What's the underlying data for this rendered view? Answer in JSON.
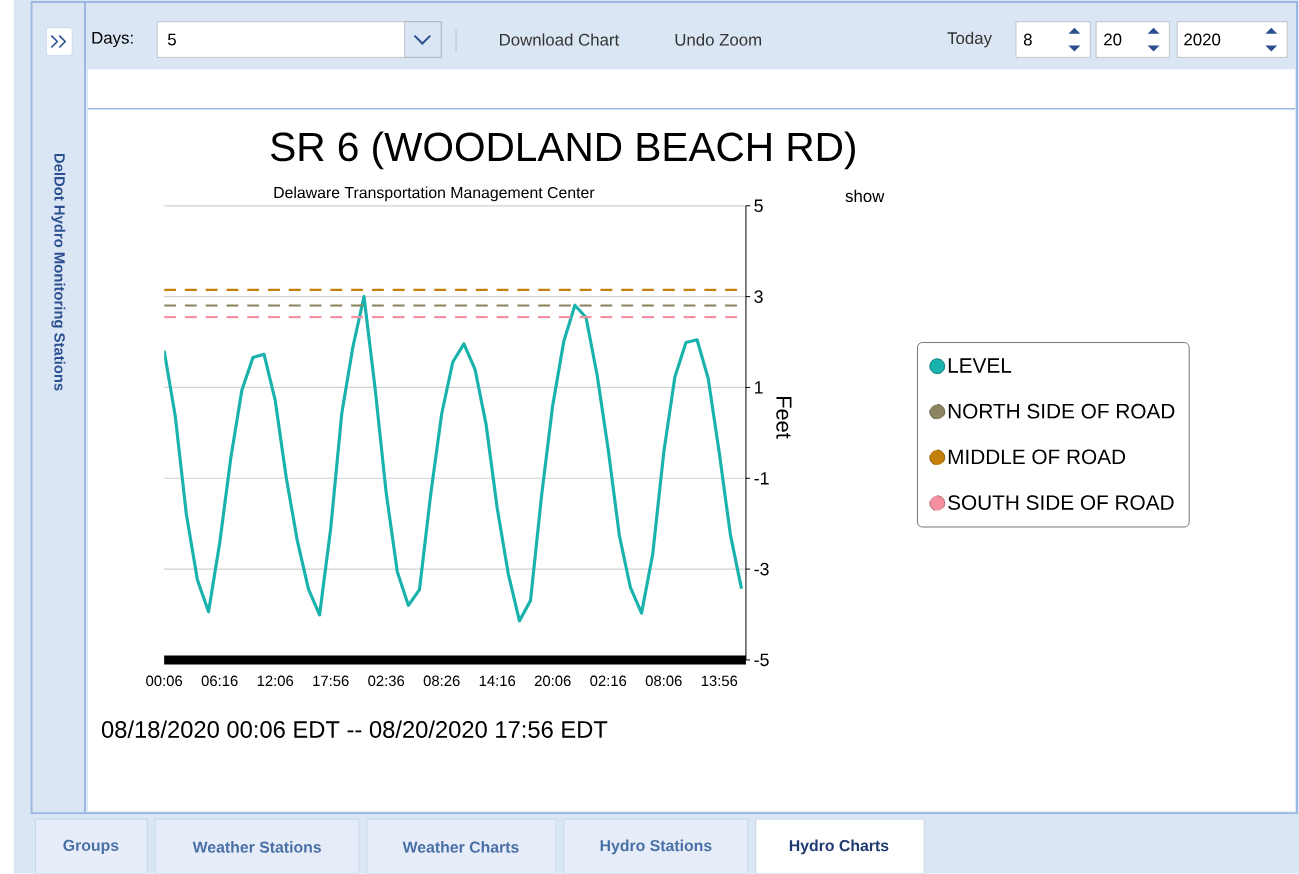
{
  "chart_data": {
    "type": "line",
    "title": "SR 6 (WOODLAND BEACH RD)",
    "subtitle": "Delaware Transportation Management Center",
    "ylabel": "Feet",
    "categories": [
      "00:06",
      null,
      null,
      null,
      null,
      "06:16",
      null,
      null,
      null,
      null,
      "12:06",
      null,
      null,
      null,
      null,
      "17:56",
      null,
      null,
      null,
      null,
      "02:36",
      null,
      null,
      null,
      null,
      "08:26",
      null,
      null,
      null,
      null,
      "14:16",
      null,
      null,
      null,
      null,
      "20:06",
      null,
      null,
      null,
      null,
      "02:16",
      null,
      null,
      null,
      null,
      "08:06",
      null,
      null,
      null,
      null,
      "13:56",
      null,
      null
    ],
    "ylim": [
      -5,
      5
    ],
    "yticks": [
      -5,
      -3,
      -1,
      1,
      3,
      5
    ],
    "grid": "y",
    "legend": "right",
    "series": [
      {
        "name": "LEVEL",
        "color": "#19b2ac",
        "values": [
          1.81,
          0.37,
          -1.79,
          -3.24,
          -3.94,
          -2.43,
          -0.56,
          0.94,
          1.66,
          1.73,
          0.72,
          -0.99,
          -2.38,
          -3.44,
          -4.01,
          -2.11,
          0.43,
          1.89,
          3.0,
          0.98,
          -1.32,
          -3.06,
          -3.8,
          -3.45,
          -1.37,
          0.42,
          1.56,
          1.96,
          1.4,
          0.18,
          -1.66,
          -3.11,
          -4.14,
          -3.69,
          -1.37,
          0.61,
          2.02,
          2.81,
          2.54,
          1.27,
          -0.37,
          -2.26,
          -3.41,
          -3.97,
          -2.68,
          -0.43,
          1.23,
          1.99,
          2.05,
          1.2,
          -0.44,
          -2.24,
          -3.43
        ]
      }
    ],
    "ref_lines": [
      {
        "axis": "y",
        "value": 2.8,
        "label": "NORTH SIDE OF ROAD",
        "color": "#8a8560",
        "line_style": "dashed"
      },
      {
        "axis": "y",
        "value": 3.15,
        "label": "MIDDLE OF ROAD",
        "color": "#c47f0a",
        "line_style": "dashed"
      },
      {
        "axis": "y",
        "value": 2.55,
        "label": "SOUTH SIDE OF ROAD",
        "color": "#f490a0",
        "line_style": "dashed"
      }
    ],
    "annotations": [
      "Days:",
      "5",
      "Download Chart",
      "Undo Zoom",
      "Today",
      "8",
      "20",
      "2020",
      "DelDot Hydro Monitoring Stations",
      "Groups",
      "Weather Stations",
      "Weather Charts",
      "Hydro Stations",
      "Hydro Charts",
      "show",
      "08/18/2020  00:06 EDT   --  08/20/2020  17:56 EDT"
    ]
  }
}
